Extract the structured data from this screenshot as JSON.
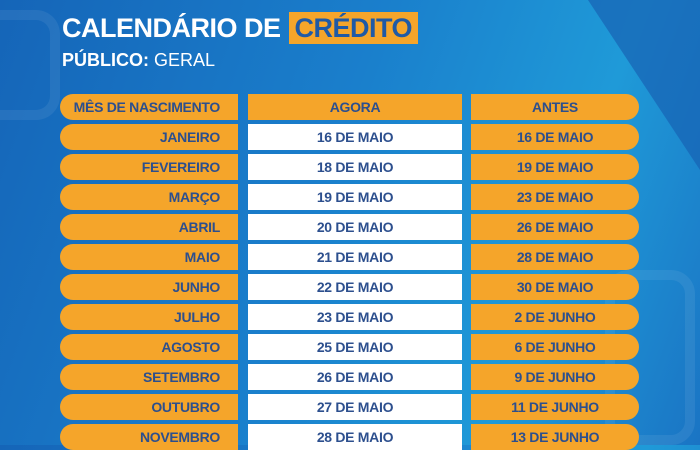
{
  "title": {
    "main": "CALENDÁRIO DE",
    "highlight": "CRÉDITO"
  },
  "subtitle": {
    "label": "PÚBLICO:",
    "value": "GERAL"
  },
  "colors": {
    "orange": "#f5a52a",
    "blue": "#1a7fcc",
    "text": "#2c4f8e"
  },
  "table": {
    "headers": [
      "MÊS DE NASCIMENTO",
      "AGORA",
      "ANTES"
    ],
    "rows": [
      [
        "JANEIRO",
        "16 DE MAIO",
        "16 DE MAIO"
      ],
      [
        "FEVEREIRO",
        "18 DE MAIO",
        "19 DE MAIO"
      ],
      [
        "MARÇO",
        "19 DE MAIO",
        "23 DE MAIO"
      ],
      [
        "ABRIL",
        "20 DE MAIO",
        "26 DE MAIO"
      ],
      [
        "MAIO",
        "21 DE MAIO",
        "28 DE MAIO"
      ],
      [
        "JUNHO",
        "22 DE MAIO",
        "30 DE MAIO"
      ],
      [
        "JULHO",
        "23 DE MAIO",
        "2 DE JUNHO"
      ],
      [
        "AGOSTO",
        "25 DE MAIO",
        "6 DE JUNHO"
      ],
      [
        "SETEMBRO",
        "26 DE MAIO",
        "9 DE JUNHO"
      ],
      [
        "OUTUBRO",
        "27 DE MAIO",
        "11 DE JUNHO"
      ],
      [
        "NOVEMBRO",
        "28 DE MAIO",
        "13 DE JUNHO"
      ]
    ]
  }
}
